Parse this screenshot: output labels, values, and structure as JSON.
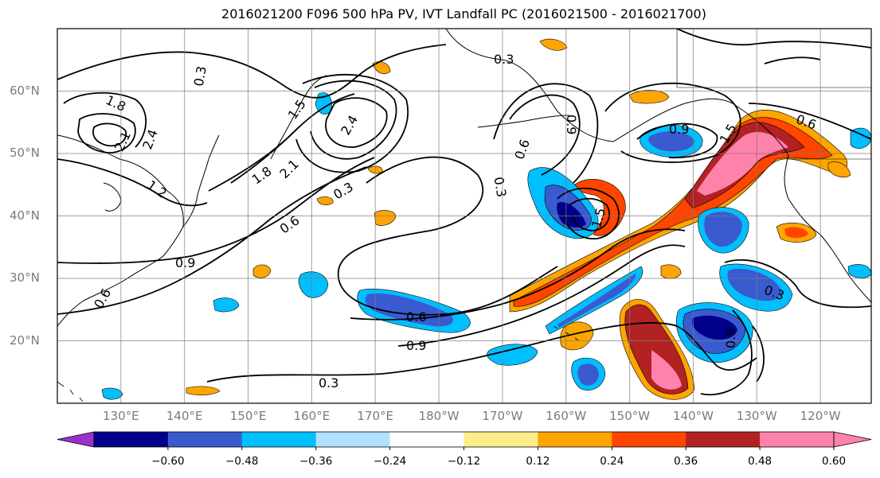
{
  "title": "2016021200 F096 500 hPa PV, IVT Landfall PC (2016021500 - 2016021700)",
  "map": {
    "lat_labels": [
      {
        "text": "60°N",
        "lat": 60
      },
      {
        "text": "50°N",
        "lat": 50
      },
      {
        "text": "40°N",
        "lat": 40
      },
      {
        "text": "30°N",
        "lat": 30
      },
      {
        "text": "20°N",
        "lat": 20
      }
    ],
    "lon_labels": [
      {
        "text": "130°E",
        "lon": 130
      },
      {
        "text": "140°E",
        "lon": 140
      },
      {
        "text": "150°E",
        "lon": 150
      },
      {
        "text": "160°E",
        "lon": 160
      },
      {
        "text": "170°E",
        "lon": 170
      },
      {
        "text": "180°W",
        "lon": 180
      },
      {
        "text": "170°W",
        "lon": 190
      },
      {
        "text": "160°W",
        "lon": 200
      },
      {
        "text": "150°W",
        "lon": 210
      },
      {
        "text": "140°W",
        "lon": 220
      },
      {
        "text": "130°W",
        "lon": 230
      },
      {
        "text": "120°W",
        "lon": 240
      }
    ],
    "extent": {
      "lon_min": 120,
      "lon_max": 248,
      "lat_min": 10,
      "lat_max": 70
    },
    "contour_labels": [
      "1.8",
      "2.1",
      "2.4",
      "1.2",
      "0.9",
      "0.6",
      "0.3",
      "1.5"
    ]
  },
  "colorbar": {
    "labels": [
      "−0.60",
      "−0.48",
      "−0.36",
      "−0.24",
      "−0.12",
      "0.12",
      "0.24",
      "0.36",
      "0.48",
      "0.60"
    ],
    "colors": [
      "#8b2be2",
      "#00008b",
      "#3a5bd0",
      "#00bfff",
      "#b0e2ff",
      "#ffffff",
      "#ffec8b",
      "#ffa500",
      "#ff4500",
      "#b22222",
      "#ff82ab"
    ],
    "extend_min_color": "#9932cc",
    "extend_max_color": "#ff82ab"
  }
}
